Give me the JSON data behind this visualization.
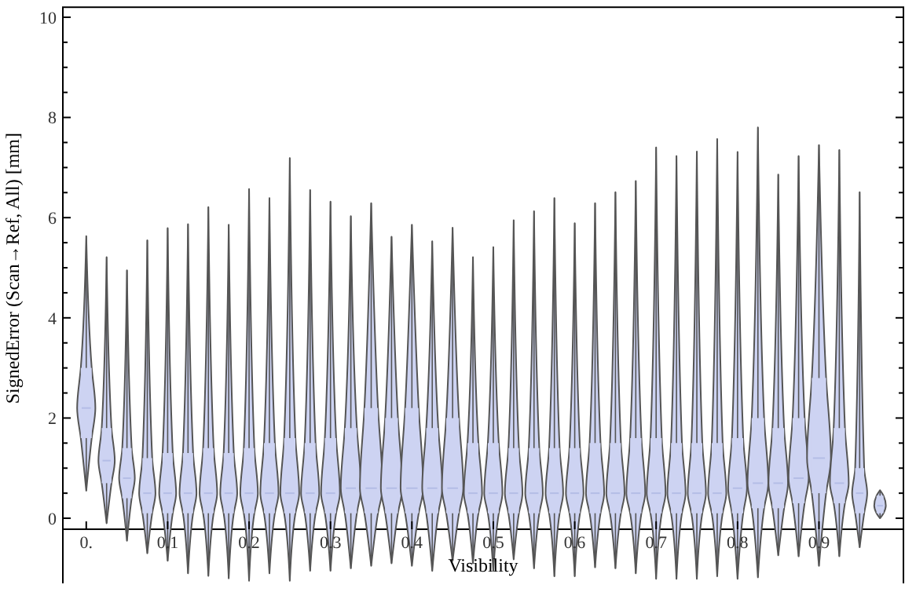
{
  "chart_data": {
    "type": "box",
    "xlabel": "Visibility",
    "ylabel": "SignedError (Scan→Ref, All) [mm]",
    "categories": [
      "0.",
      null,
      null,
      null,
      "0.1",
      null,
      null,
      null,
      "0.2",
      null,
      null,
      null,
      "0.3",
      null,
      null,
      null,
      "0.4",
      null,
      null,
      null,
      "0.5",
      null,
      null,
      null,
      "0.6",
      null,
      null,
      null,
      "0.7",
      null,
      null,
      null,
      "0.8",
      null,
      null,
      null,
      "0.9",
      null,
      null,
      null
    ],
    "ylim": [
      -1.3,
      10.2
    ],
    "yticks": [
      0,
      {
        "value": 0.5,
        "label": null
      },
      {
        "value": 1,
        "label": null
      },
      {
        "value": 1.5,
        "label": null
      },
      2,
      {
        "value": 2.5,
        "label": null
      },
      {
        "value": 3,
        "label": null
      },
      {
        "value": 3.5,
        "label": null
      },
      4,
      {
        "value": 4.5,
        "label": null
      },
      {
        "value": 5,
        "label": null
      },
      {
        "value": 5.5,
        "label": null
      },
      6,
      {
        "value": 6.5,
        "label": null
      },
      {
        "value": 7,
        "label": null
      },
      {
        "value": 7.5,
        "label": null
      },
      8,
      {
        "value": 8.5,
        "label": null
      },
      {
        "value": 9,
        "label": null
      },
      {
        "value": 9.5,
        "label": null
      },
      10
    ],
    "series": [
      {
        "color": "#cdd3f2",
        "boxes": [
          {
            "low": 0.55,
            "q1": 1.6,
            "median": 2.2,
            "q3": 3.0,
            "high": 5.63
          },
          {
            "low": -0.1,
            "q1": 0.7,
            "median": 1.15,
            "q3": 1.8,
            "high": 5.21
          },
          {
            "low": -0.45,
            "q1": 0.4,
            "median": 0.8,
            "q3": 1.4,
            "high": 4.95
          },
          {
            "low": -0.7,
            "q1": 0.1,
            "median": 0.5,
            "q3": 1.2,
            "high": 5.55
          },
          {
            "low": -0.85,
            "q1": 0.1,
            "median": 0.5,
            "q3": 1.3,
            "high": 5.79
          },
          {
            "low": -1.1,
            "q1": 0.1,
            "median": 0.5,
            "q3": 1.3,
            "high": 5.87
          },
          {
            "low": -1.15,
            "q1": 0.1,
            "median": 0.5,
            "q3": 1.4,
            "high": 6.21
          },
          {
            "low": -1.2,
            "q1": 0.1,
            "median": 0.5,
            "q3": 1.3,
            "high": 5.86
          },
          {
            "low": -1.25,
            "q1": 0.1,
            "median": 0.5,
            "q3": 1.4,
            "high": 6.57
          },
          {
            "low": -1.1,
            "q1": 0.1,
            "median": 0.5,
            "q3": 1.5,
            "high": 6.39
          },
          {
            "low": -1.25,
            "q1": 0.1,
            "median": 0.5,
            "q3": 1.6,
            "high": 7.19
          },
          {
            "low": -1.05,
            "q1": 0.1,
            "median": 0.5,
            "q3": 1.5,
            "high": 6.55
          },
          {
            "low": -1.05,
            "q1": 0.1,
            "median": 0.5,
            "q3": 1.6,
            "high": 6.32
          },
          {
            "low": -1.0,
            "q1": 0.1,
            "median": 0.6,
            "q3": 1.8,
            "high": 6.03
          },
          {
            "low": -0.95,
            "q1": 0.1,
            "median": 0.6,
            "q3": 2.2,
            "high": 6.29
          },
          {
            "low": -0.9,
            "q1": 0.1,
            "median": 0.6,
            "q3": 2.0,
            "high": 5.62
          },
          {
            "low": -0.95,
            "q1": 0.1,
            "median": 0.6,
            "q3": 2.2,
            "high": 5.86
          },
          {
            "low": -1.05,
            "q1": 0.1,
            "median": 0.6,
            "q3": 1.8,
            "high": 5.53
          },
          {
            "low": -0.85,
            "q1": 0.1,
            "median": 0.6,
            "q3": 2.0,
            "high": 5.8
          },
          {
            "low": -0.9,
            "q1": 0.1,
            "median": 0.5,
            "q3": 1.5,
            "high": 5.21
          },
          {
            "low": -1.05,
            "q1": 0.1,
            "median": 0.5,
            "q3": 1.5,
            "high": 5.41
          },
          {
            "low": -0.82,
            "q1": 0.1,
            "median": 0.5,
            "q3": 1.4,
            "high": 5.95
          },
          {
            "low": -1.0,
            "q1": 0.1,
            "median": 0.5,
            "q3": 1.4,
            "high": 6.13
          },
          {
            "low": -1.16,
            "q1": 0.1,
            "median": 0.5,
            "q3": 1.4,
            "high": 6.39
          },
          {
            "low": -1.16,
            "q1": 0.1,
            "median": 0.5,
            "q3": 1.4,
            "high": 5.89
          },
          {
            "low": -0.98,
            "q1": 0.1,
            "median": 0.5,
            "q3": 1.5,
            "high": 6.29
          },
          {
            "low": -1.0,
            "q1": 0.1,
            "median": 0.5,
            "q3": 1.5,
            "high": 6.51
          },
          {
            "low": -1.1,
            "q1": 0.1,
            "median": 0.5,
            "q3": 1.6,
            "high": 6.73
          },
          {
            "low": -1.21,
            "q1": 0.1,
            "median": 0.5,
            "q3": 1.6,
            "high": 7.4
          },
          {
            "low": -1.21,
            "q1": 0.1,
            "median": 0.5,
            "q3": 1.5,
            "high": 7.23
          },
          {
            "low": -1.21,
            "q1": 0.1,
            "median": 0.5,
            "q3": 1.5,
            "high": 7.32
          },
          {
            "low": -1.16,
            "q1": 0.1,
            "median": 0.5,
            "q3": 1.5,
            "high": 7.57
          },
          {
            "low": -1.21,
            "q1": 0.1,
            "median": 0.6,
            "q3": 1.6,
            "high": 7.31
          },
          {
            "low": -1.18,
            "q1": 0.2,
            "median": 0.7,
            "q3": 2.0,
            "high": 7.8
          },
          {
            "low": -0.74,
            "q1": 0.2,
            "median": 0.7,
            "q3": 1.8,
            "high": 6.86
          },
          {
            "low": -0.76,
            "q1": 0.3,
            "median": 0.8,
            "q3": 2.0,
            "high": 7.23
          },
          {
            "low": -0.95,
            "q1": 0.5,
            "median": 1.2,
            "q3": 2.8,
            "high": 7.45
          },
          {
            "low": -0.76,
            "q1": 0.3,
            "median": 0.7,
            "q3": 1.8,
            "high": 7.35
          },
          {
            "low": -0.58,
            "q1": 0.1,
            "median": 0.5,
            "q3": 1.0,
            "high": 6.51
          },
          {
            "low": 0.0,
            "q1": 0.1,
            "median": 0.25,
            "q3": 0.45,
            "high": 0.56
          }
        ]
      }
    ]
  }
}
